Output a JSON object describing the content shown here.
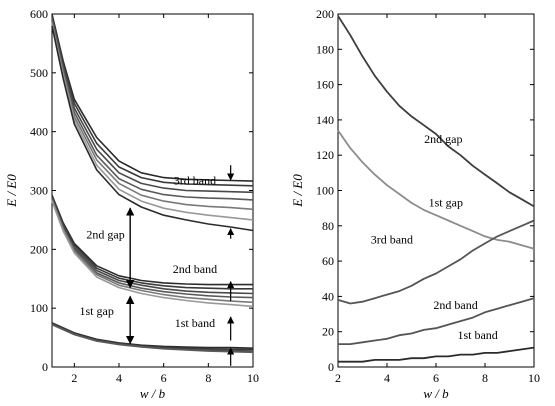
{
  "chart_data": [
    {
      "type": "line",
      "panel": "left",
      "xlabel": "w / b",
      "ylabel": "E / E0",
      "xlim": [
        1,
        10
      ],
      "ylim": [
        0,
        600
      ],
      "xticks": [
        "2",
        "4",
        "6",
        "8",
        "10"
      ],
      "yticks": [
        "0",
        "100",
        "200",
        "300",
        "400",
        "500",
        "600"
      ],
      "grid": false,
      "colors": [
        "#2b2b2b",
        "#3a3a3a",
        "#4a4a4a",
        "#5a5a5a",
        "#7a7a7a",
        "#999999"
      ],
      "band_groups": [
        {
          "name": "3rd band",
          "x": [
            1,
            1.5,
            2,
            3,
            4,
            5,
            6,
            7,
            8,
            9,
            10
          ],
          "series": [
            {
              "values": [
                600,
                520,
                455,
                390,
                350,
                330,
                322,
                319,
                318,
                317,
                316
              ]
            },
            {
              "values": [
                597,
                515,
                448,
                380,
                340,
                322,
                314,
                311,
                310,
                309,
                308
              ]
            },
            {
              "values": [
                594,
                510,
                440,
                370,
                330,
                312,
                304,
                300,
                299,
                298,
                297
              ]
            },
            {
              "values": [
                590,
                505,
                433,
                360,
                320,
                302,
                293,
                289,
                287,
                286,
                284
              ]
            },
            {
              "values": [
                586,
                500,
                426,
                352,
                312,
                292,
                282,
                276,
                273,
                271,
                268
              ]
            },
            {
              "values": [
                582,
                495,
                420,
                343,
                302,
                282,
                270,
                263,
                258,
                254,
                250
              ]
            },
            {
              "values": [
                580,
                490,
                413,
                335,
                293,
                272,
                258,
                250,
                243,
                238,
                232
              ]
            }
          ]
        },
        {
          "name": "2nd band",
          "x": [
            1,
            1.5,
            2,
            3,
            4,
            5,
            6,
            7,
            8,
            9,
            10
          ],
          "series": [
            {
              "values": [
                292,
                245,
                210,
                172,
                155,
                147,
                143,
                141,
                140,
                140,
                140
              ]
            },
            {
              "values": [
                290,
                242,
                207,
                168,
                151,
                143,
                138,
                135,
                134,
                133,
                133
              ]
            },
            {
              "values": [
                288,
                239,
                203,
                164,
                147,
                139,
                133,
                129,
                127,
                126,
                125
              ]
            },
            {
              "values": [
                286,
                236,
                200,
                160,
                143,
                134,
                128,
                124,
                121,
                119,
                118
              ]
            },
            {
              "values": [
                284,
                234,
                197,
                157,
                139,
                130,
                123,
                118,
                115,
                112,
                110
              ]
            },
            {
              "values": [
                282,
                231,
                194,
                153,
                135,
                125,
                118,
                113,
                109,
                106,
                103
              ]
            }
          ]
        },
        {
          "name": "1st band",
          "x": [
            1,
            2,
            3,
            4,
            5,
            6,
            7,
            8,
            9,
            10
          ],
          "series": [
            {
              "values": [
                75,
                58,
                47,
                41,
                37,
                35,
                34,
                33,
                33,
                32
              ]
            },
            {
              "values": [
                74,
                57,
                46,
                40,
                36,
                33,
                32,
                31,
                30,
                30
              ]
            },
            {
              "values": [
                73,
                56,
                45,
                39,
                35,
                32,
                30,
                29,
                28,
                27
              ]
            },
            {
              "values": [
                72,
                55,
                44,
                38,
                34,
                31,
                29,
                27,
                26,
                25
              ]
            }
          ]
        }
      ],
      "annotations": [
        {
          "text": "3rd band",
          "at": [
            7.4,
            310
          ]
        },
        {
          "text": "2nd gap",
          "at": [
            3.4,
            218
          ]
        },
        {
          "text": "2nd band",
          "at": [
            7.4,
            160
          ]
        },
        {
          "text": "1st gap",
          "at": [
            3.0,
            88
          ]
        },
        {
          "text": "1st band",
          "at": [
            7.4,
            68
          ]
        }
      ],
      "double_arrows": [
        {
          "x": 4.5,
          "y_from": 135,
          "y_to": 270
        },
        {
          "x": 4.5,
          "y_from": 40,
          "y_to": 120
        }
      ],
      "markers": [
        {
          "x": 9.0,
          "y_from": 343,
          "y_to": 318
        },
        {
          "x": 9.0,
          "y_from": 218,
          "y_to": 235
        },
        {
          "x": 9.0,
          "y_from": 112,
          "y_to": 145
        },
        {
          "x": 9.0,
          "y_from": 45,
          "y_to": 85
        },
        {
          "x": 9.0,
          "y_from": 2,
          "y_to": 32
        }
      ]
    },
    {
      "type": "line",
      "panel": "right",
      "xlabel": "w / b",
      "ylabel": "E / E0",
      "xlim": [
        2,
        10
      ],
      "ylim": [
        0,
        200
      ],
      "xticks": [
        "2",
        "4",
        "6",
        "8",
        "10"
      ],
      "yticks": [
        "0",
        "20",
        "40",
        "60",
        "80",
        "100",
        "120",
        "140",
        "160",
        "180",
        "200"
      ],
      "grid": false,
      "x": [
        2,
        2.5,
        3,
        3.5,
        4,
        4.5,
        5,
        5.5,
        6,
        6.5,
        7,
        7.5,
        8,
        8.5,
        9,
        9.5,
        10
      ],
      "series": [
        {
          "name": "2nd gap",
          "color": "#3d3d3d",
          "values": [
            199,
            188,
            176,
            165,
            156,
            148,
            142,
            137,
            132,
            125,
            120,
            114,
            109,
            104,
            99,
            95,
            91
          ]
        },
        {
          "name": "1st gap",
          "color": "#8c8c8c",
          "values": [
            134,
            124,
            116,
            109,
            103,
            98,
            93,
            89,
            86,
            83,
            80,
            77,
            74,
            72,
            71,
            69,
            67
          ]
        },
        {
          "name": "3rd band",
          "color": "#555555",
          "values": [
            38,
            36,
            37,
            39,
            41,
            43,
            46,
            50,
            53,
            57,
            61,
            66,
            70,
            74,
            77,
            80,
            83
          ]
        },
        {
          "name": "2nd band",
          "color": "#555555",
          "values": [
            13,
            13,
            14,
            15,
            16,
            18,
            19,
            21,
            22,
            24,
            26,
            28,
            31,
            33,
            35,
            37,
            39
          ]
        },
        {
          "name": "1st band",
          "color": "#2b2b2b",
          "values": [
            3,
            3,
            3,
            4,
            4,
            4,
            5,
            5,
            6,
            6,
            7,
            7,
            8,
            8,
            9,
            10,
            11
          ]
        }
      ],
      "annotations": [
        {
          "text": "2nd gap",
          "at": [
            6.3,
            127
          ]
        },
        {
          "text": "1st gap",
          "at": [
            6.4,
            91
          ]
        },
        {
          "text": "3rd band",
          "at": [
            4.2,
            70
          ]
        },
        {
          "text": "2nd band",
          "at": [
            6.8,
            33
          ]
        },
        {
          "text": "1st band",
          "at": [
            7.7,
            16
          ]
        }
      ]
    }
  ]
}
